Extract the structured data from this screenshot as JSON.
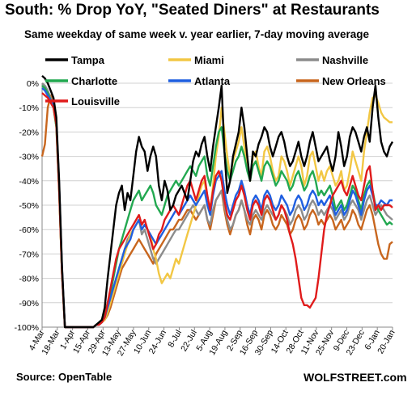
{
  "header": {
    "title": "South: % Drop YoY, \"Seated Diners\" at Restaurants",
    "subtitle": "Same weekday of same week v. year earlier, 7-day moving average"
  },
  "footer": {
    "source": "Source: OpenTable",
    "brand": "WOLFSTREET.com"
  },
  "chart_data": {
    "type": "line",
    "title": "South: % Drop YoY, \"Seated Diners\" at Restaurants",
    "subtitle": "Same weekday of same week v. year earlier, 7-day moving average",
    "ylim": [
      -100,
      0
    ],
    "y_ticks": [
      0,
      -10,
      -20,
      -30,
      -40,
      -50,
      -60,
      -70,
      -80,
      -90,
      -100
    ],
    "y_tick_labels": [
      "0%",
      "-10%",
      "-20%",
      "-30%",
      "-40%",
      "-50%",
      "-60%",
      "-70%",
      "-80%",
      "-90%",
      "-100%"
    ],
    "x_tick_labels": [
      "4-Mar",
      "18-Mar",
      "1-Apr",
      "15-Apr",
      "29-Apr",
      "13-May",
      "27-May",
      "10-Jun",
      "24-Jun",
      "8-Jul",
      "22-Jul",
      "5-Aug",
      "19-Aug",
      "2-Sep",
      "16-Sep",
      "30-Sep",
      "14-Oct",
      "28-Oct",
      "11-Nov",
      "25-Nov",
      "9-Dec",
      "23-Dec",
      "6-Jan",
      "20-Jan"
    ],
    "grid": true,
    "legend_position": "top",
    "series": [
      {
        "name": "Tampa",
        "color": "#000000",
        "values": [
          3,
          2,
          0,
          -3,
          -6,
          -14,
          -40,
          -75,
          -100,
          -100,
          -100,
          -100,
          -100,
          -100,
          -100,
          -100,
          -100,
          -100,
          -100,
          -99,
          -98,
          -97,
          -92,
          -80,
          -70,
          -60,
          -50,
          -45,
          -42,
          -52,
          -45,
          -48,
          -38,
          -28,
          -22,
          -26,
          -28,
          -36,
          -30,
          -26,
          -30,
          -42,
          -48,
          -40,
          -44,
          -52,
          -50,
          -46,
          -44,
          -42,
          -45,
          -48,
          -40,
          -32,
          -28,
          -30,
          -25,
          -22,
          -30,
          -36,
          -26,
          -18,
          -10,
          -1,
          -28,
          -45,
          -40,
          -30,
          -25,
          -20,
          -10,
          -18,
          -30,
          -40,
          -28,
          -30,
          -25,
          -22,
          -18,
          -20,
          -26,
          -30,
          -26,
          -22,
          -20,
          -24,
          -30,
          -34,
          -32,
          -28,
          -24,
          -30,
          -34,
          -30,
          -24,
          -20,
          -26,
          -32,
          -30,
          -28,
          -26,
          -32,
          -36,
          -30,
          -20,
          -26,
          -34,
          -30,
          -22,
          -18,
          -20,
          -24,
          -28,
          -22,
          -18,
          -24,
          -10,
          -1,
          -14,
          -24,
          -28,
          -30,
          -26,
          -24
        ]
      },
      {
        "name": "Miami",
        "color": "#f2c744",
        "values": [
          -2,
          -3,
          -5,
          -8,
          -10,
          -18,
          -45,
          -78,
          -100,
          -100,
          -100,
          -100,
          -100,
          -100,
          -100,
          -100,
          -100,
          -100,
          -100,
          -99,
          -99,
          -98,
          -97,
          -94,
          -90,
          -86,
          -82,
          -78,
          -74,
          -70,
          -66,
          -62,
          -60,
          -58,
          -56,
          -60,
          -58,
          -60,
          -62,
          -68,
          -72,
          -78,
          -82,
          -80,
          -78,
          -80,
          -76,
          -72,
          -74,
          -70,
          -66,
          -62,
          -58,
          -54,
          -50,
          -46,
          -42,
          -40,
          -48,
          -52,
          -42,
          -30,
          -22,
          -10,
          -20,
          -30,
          -38,
          -32,
          -28,
          -24,
          -18,
          -26,
          -34,
          -40,
          -30,
          -28,
          -34,
          -38,
          -28,
          -26,
          -30,
          -36,
          -40,
          -38,
          -30,
          -32,
          -36,
          -42,
          -38,
          -34,
          -30,
          -34,
          -42,
          -38,
          -30,
          -28,
          -34,
          -40,
          -36,
          -40,
          -36,
          -34,
          -38,
          -42,
          -40,
          -36,
          -44,
          -42,
          -36,
          -28,
          -32,
          -36,
          -40,
          -28,
          -20,
          -12,
          -6,
          -5,
          -8,
          -12,
          -14,
          -15,
          -16,
          -16
        ]
      },
      {
        "name": "Nashville",
        "color": "#8c8c8c",
        "values": [
          0,
          -1,
          -3,
          -6,
          -8,
          -16,
          -42,
          -76,
          -100,
          -100,
          -100,
          -100,
          -100,
          -100,
          -100,
          -100,
          -100,
          -100,
          -100,
          -99,
          -99,
          -98,
          -96,
          -92,
          -88,
          -84,
          -80,
          -76,
          -72,
          -68,
          -64,
          -62,
          -60,
          -58,
          -56,
          -62,
          -60,
          -64,
          -68,
          -72,
          -74,
          -72,
          -70,
          -68,
          -66,
          -64,
          -62,
          -60,
          -60,
          -58,
          -56,
          -54,
          -52,
          -50,
          -52,
          -54,
          -52,
          -50,
          -56,
          -58,
          -52,
          -48,
          -46,
          -44,
          -50,
          -56,
          -60,
          -58,
          -54,
          -52,
          -48,
          -52,
          -56,
          -58,
          -54,
          -52,
          -54,
          -56,
          -52,
          -50,
          -52,
          -54,
          -56,
          -54,
          -50,
          -52,
          -54,
          -58,
          -56,
          -52,
          -50,
          -52,
          -56,
          -54,
          -50,
          -48,
          -50,
          -54,
          -52,
          -54,
          -52,
          -50,
          -52,
          -56,
          -54,
          -52,
          -56,
          -54,
          -50,
          -48,
          -50,
          -52,
          -56,
          -52,
          -48,
          -46,
          -50,
          -54,
          -52,
          -50,
          -52,
          -54,
          -55,
          -56
        ]
      },
      {
        "name": "Charlotte",
        "color": "#22a850",
        "values": [
          -1,
          -2,
          -4,
          -7,
          -10,
          -18,
          -44,
          -78,
          -100,
          -100,
          -100,
          -100,
          -100,
          -100,
          -100,
          -100,
          -100,
          -100,
          -100,
          -99,
          -98,
          -97,
          -95,
          -90,
          -86,
          -80,
          -74,
          -68,
          -64,
          -60,
          -56,
          -52,
          -48,
          -46,
          -44,
          -48,
          -46,
          -44,
          -42,
          -45,
          -50,
          -52,
          -54,
          -50,
          -46,
          -44,
          -42,
          -40,
          -42,
          -40,
          -38,
          -36,
          -34,
          -36,
          -38,
          -34,
          -32,
          -30,
          -38,
          -42,
          -34,
          -26,
          -20,
          -18,
          -28,
          -36,
          -40,
          -36,
          -32,
          -30,
          -26,
          -30,
          -36,
          -40,
          -34,
          -32,
          -36,
          -40,
          -34,
          -32,
          -34,
          -38,
          -42,
          -40,
          -36,
          -38,
          -40,
          -44,
          -42,
          -38,
          -36,
          -40,
          -44,
          -42,
          -38,
          -36,
          -40,
          -46,
          -44,
          -46,
          -44,
          -42,
          -46,
          -52,
          -50,
          -48,
          -52,
          -50,
          -46,
          -42,
          -44,
          -48,
          -52,
          -46,
          -42,
          -40,
          -44,
          -50,
          -52,
          -54,
          -56,
          -58,
          -57,
          -58
        ]
      },
      {
        "name": "Atlanta",
        "color": "#1f5fe0",
        "values": [
          -2,
          -3,
          -5,
          -7,
          -9,
          -16,
          -42,
          -76,
          -100,
          -100,
          -100,
          -100,
          -100,
          -100,
          -100,
          -100,
          -100,
          -100,
          -100,
          -99,
          -99,
          -98,
          -96,
          -92,
          -88,
          -84,
          -80,
          -76,
          -72,
          -68,
          -66,
          -64,
          -60,
          -58,
          -56,
          -60,
          -58,
          -60,
          -62,
          -64,
          -66,
          -64,
          -62,
          -60,
          -58,
          -56,
          -54,
          -52,
          -54,
          -52,
          -50,
          -48,
          -46,
          -48,
          -50,
          -48,
          -46,
          -44,
          -50,
          -54,
          -46,
          -40,
          -38,
          -36,
          -44,
          -50,
          -54,
          -50,
          -46,
          -44,
          -40,
          -44,
          -50,
          -54,
          -48,
          -46,
          -48,
          -52,
          -46,
          -44,
          -46,
          -50,
          -52,
          -50,
          -46,
          -48,
          -50,
          -54,
          -52,
          -48,
          -46,
          -48,
          -52,
          -50,
          -46,
          -44,
          -46,
          -50,
          -48,
          -50,
          -48,
          -46,
          -50,
          -54,
          -52,
          -50,
          -54,
          -52,
          -48,
          -44,
          -46,
          -50,
          -54,
          -48,
          -44,
          -42,
          -46,
          -50,
          -50,
          -48,
          -49,
          -50,
          -48,
          -48
        ]
      },
      {
        "name": "New Orleans",
        "color": "#c8661e",
        "values": [
          -30,
          -25,
          -10,
          -5,
          -8,
          -16,
          -44,
          -78,
          -100,
          -100,
          -100,
          -100,
          -100,
          -100,
          -100,
          -100,
          -100,
          -100,
          -100,
          -99,
          -99,
          -98,
          -97,
          -95,
          -92,
          -88,
          -84,
          -80,
          -76,
          -74,
          -72,
          -70,
          -68,
          -66,
          -64,
          -66,
          -68,
          -70,
          -72,
          -74,
          -70,
          -68,
          -66,
          -64,
          -62,
          -60,
          -60,
          -58,
          -56,
          -56,
          -54,
          -52,
          -52,
          -54,
          -56,
          -54,
          -52,
          -50,
          -56,
          -60,
          -54,
          -48,
          -46,
          -44,
          -52,
          -58,
          -62,
          -58,
          -54,
          -52,
          -48,
          -52,
          -58,
          -62,
          -56,
          -54,
          -56,
          -60,
          -54,
          -52,
          -54,
          -58,
          -60,
          -58,
          -54,
          -56,
          -58,
          -62,
          -60,
          -56,
          -54,
          -56,
          -60,
          -58,
          -54,
          -52,
          -54,
          -58,
          -56,
          -58,
          -56,
          -54,
          -56,
          -60,
          -58,
          -56,
          -60,
          -58,
          -56,
          -52,
          -54,
          -58,
          -60,
          -56,
          -52,
          -50,
          -54,
          -60,
          -66,
          -70,
          -72,
          -72,
          -66,
          -65
        ]
      },
      {
        "name": "Louisville",
        "color": "#e01b1b",
        "values": [
          -4,
          -5,
          -6,
          -8,
          -10,
          -17,
          -44,
          -78,
          -100,
          -100,
          -100,
          -100,
          -100,
          -100,
          -100,
          -100,
          -100,
          -100,
          -100,
          -99,
          -99,
          -98,
          -96,
          -90,
          -84,
          -78,
          -72,
          -68,
          -66,
          -64,
          -62,
          -60,
          -58,
          -56,
          -54,
          -58,
          -56,
          -60,
          -64,
          -68,
          -66,
          -62,
          -60,
          -56,
          -54,
          -52,
          -50,
          -52,
          -54,
          -50,
          -46,
          -42,
          -40,
          -44,
          -48,
          -44,
          -40,
          -38,
          -46,
          -52,
          -44,
          -38,
          -36,
          -40,
          -48,
          -54,
          -56,
          -52,
          -48,
          -46,
          -42,
          -46,
          -52,
          -56,
          -50,
          -48,
          -50,
          -54,
          -48,
          -46,
          -48,
          -52,
          -56,
          -54,
          -50,
          -52,
          -56,
          -62,
          -66,
          -72,
          -80,
          -88,
          -91,
          -91,
          -92,
          -90,
          -88,
          -80,
          -70,
          -60,
          -54,
          -50,
          -46,
          -44,
          -42,
          -40,
          -44,
          -46,
          -42,
          -38,
          -42,
          -46,
          -48,
          -42,
          -36,
          -34,
          -44,
          -52,
          -50,
          -52,
          -50,
          -50,
          -50,
          -51
        ]
      }
    ]
  }
}
